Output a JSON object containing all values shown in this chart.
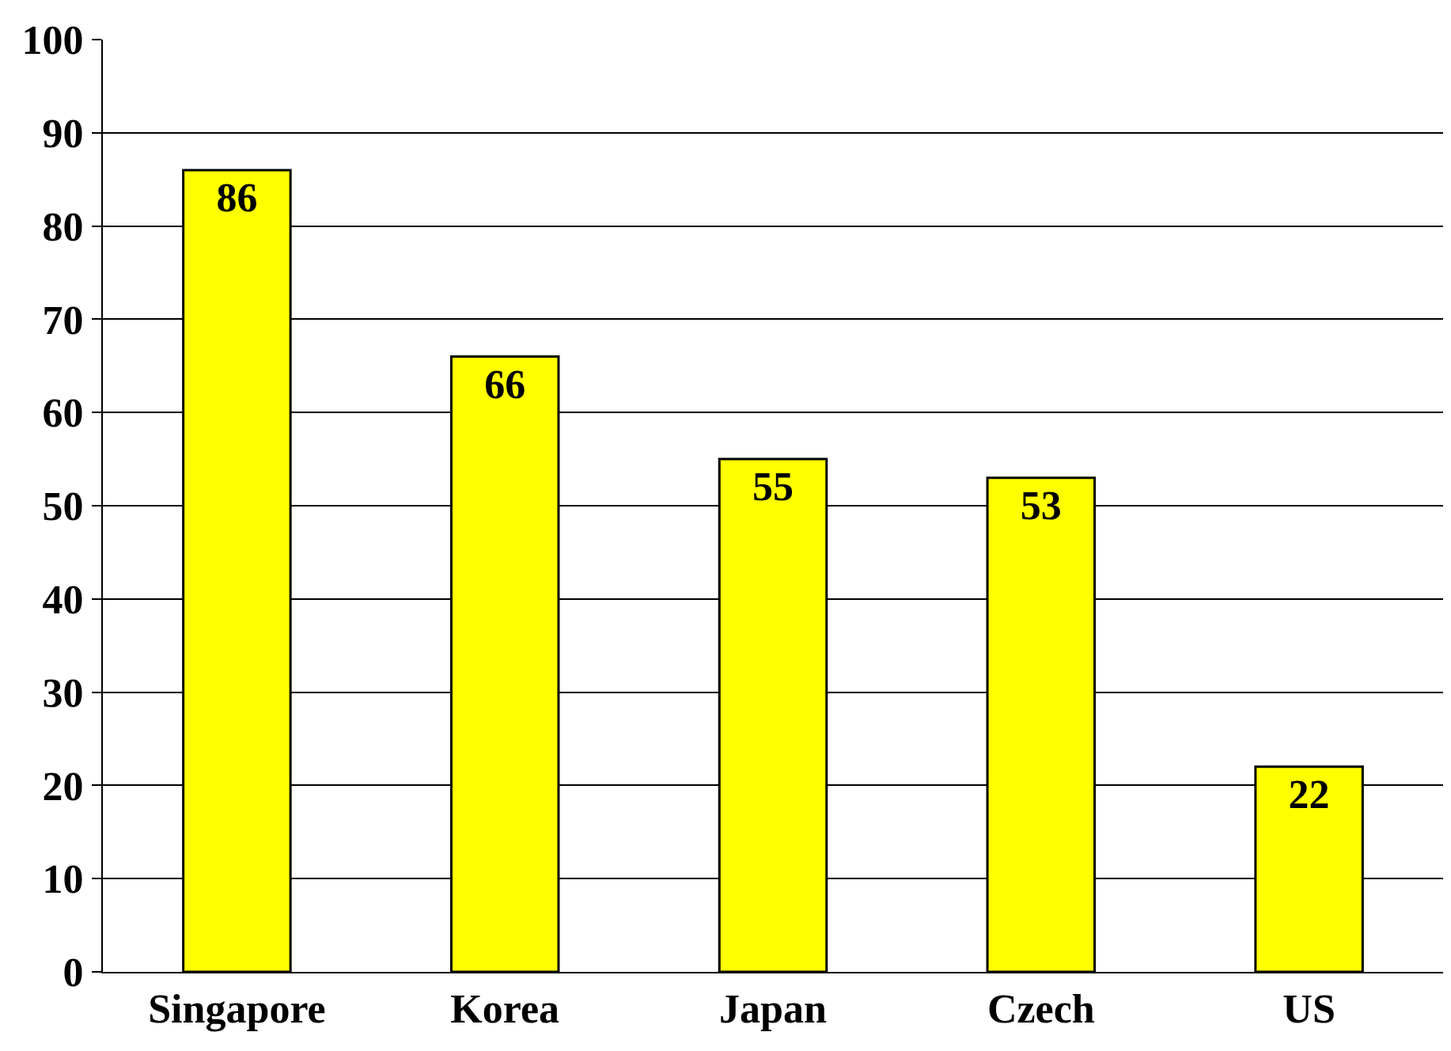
{
  "chart_data": {
    "type": "bar",
    "categories": [
      "Singapore",
      "Korea",
      "Japan",
      "Czech",
      "US"
    ],
    "values": [
      86,
      66,
      55,
      53,
      22
    ],
    "color": "#ffff00",
    "ylim": [
      0,
      100
    ],
    "yticks": [
      0,
      10,
      20,
      30,
      40,
      50,
      60,
      70,
      80,
      90,
      100
    ],
    "grid": "y",
    "data_labels": true
  }
}
